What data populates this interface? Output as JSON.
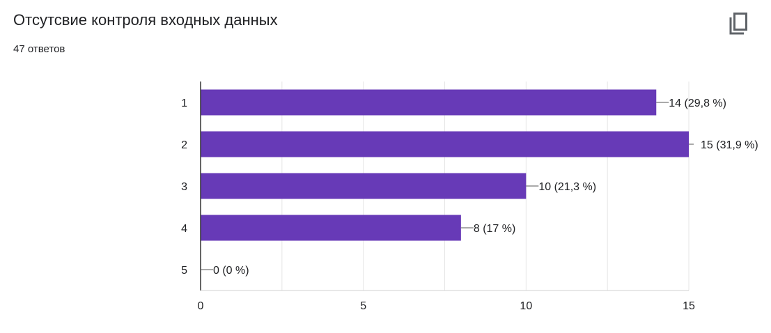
{
  "header": {
    "title": "Отсутсвие контроля входных данных",
    "response_count": "47 ответов",
    "copy_icon": "copy-icon"
  },
  "colors": {
    "bar": "#673ab7",
    "grid": "#e6e6e6",
    "axis": "#333333",
    "leader": "#555555"
  },
  "chart_data": {
    "type": "bar",
    "orientation": "horizontal",
    "categories": [
      "1",
      "2",
      "3",
      "4",
      "5"
    ],
    "values": [
      14,
      15,
      10,
      8,
      0
    ],
    "data_labels": [
      "14 (29,8 %)",
      "15 (31,9 %)",
      "10 (21,3 %)",
      "8 (17 %)",
      "0 (0 %)"
    ],
    "x_ticks": [
      0,
      5,
      10,
      15
    ],
    "x_tick_labels": [
      "0",
      "5",
      "10",
      "15"
    ],
    "xlim": [
      0,
      15
    ],
    "grid": true,
    "legend": "none"
  }
}
